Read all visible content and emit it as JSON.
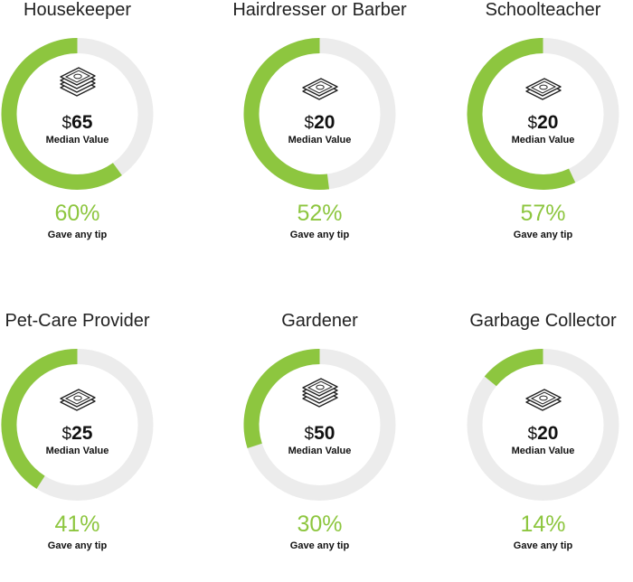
{
  "colors": {
    "accent": "#8dc63f",
    "track": "#ececec",
    "icon": "#222222"
  },
  "chart_data": [
    {
      "type": "pie",
      "title": "Housekeeper",
      "value_text": "65",
      "currency_symbol": "$",
      "value_label": "Median Value",
      "percent": 60,
      "percent_text": "60%",
      "percent_label": "Gave any tip",
      "icon": "money-stack-large-icon"
    },
    {
      "type": "pie",
      "title": "Hairdresser or Barber",
      "value_text": "20",
      "currency_symbol": "$",
      "value_label": "Median Value",
      "percent": 52,
      "percent_text": "52%",
      "percent_label": "Gave any tip",
      "icon": "money-stack-small-icon"
    },
    {
      "type": "pie",
      "title": "Schoolteacher",
      "value_text": "20",
      "currency_symbol": "$",
      "value_label": "Median Value",
      "percent": 57,
      "percent_text": "57%",
      "percent_label": "Gave any tip",
      "icon": "money-stack-small-icon"
    },
    {
      "type": "pie",
      "title": "Pet-Care Provider",
      "value_text": "25",
      "currency_symbol": "$",
      "value_label": "Median Value",
      "percent": 41,
      "percent_text": "41%",
      "percent_label": "Gave any tip",
      "icon": "money-stack-small-icon"
    },
    {
      "type": "pie",
      "title": "Gardener",
      "value_text": "50",
      "currency_symbol": "$",
      "value_label": "Median Value",
      "percent": 30,
      "percent_text": "30%",
      "percent_label": "Gave any tip",
      "icon": "money-stack-large-icon"
    },
    {
      "type": "pie",
      "title": "Garbage Collector",
      "value_text": "20",
      "currency_symbol": "$",
      "value_label": "Median Value",
      "percent": 14,
      "percent_text": "14%",
      "percent_label": "Gave any tip",
      "icon": "money-stack-small-icon"
    }
  ]
}
